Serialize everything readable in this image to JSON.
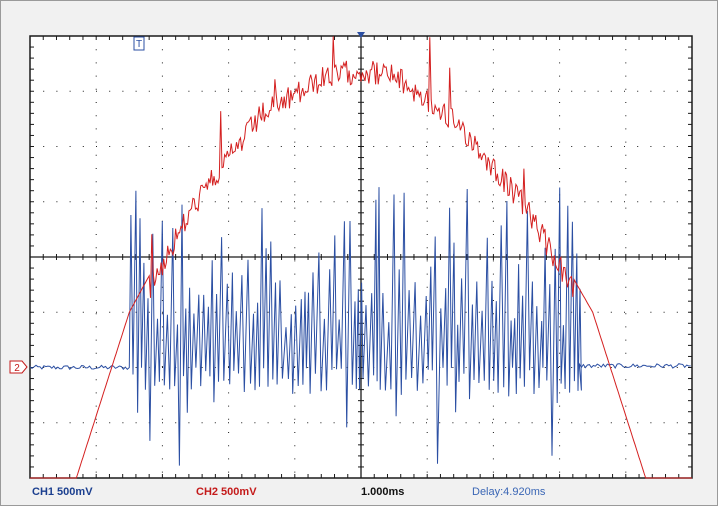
{
  "status_bar": {
    "ch1": "CH1 500mV",
    "ch2": "CH2 500mV",
    "timebase": "1.000ms",
    "delay": "Delay:4.920ms"
  },
  "markers": {
    "trigger": "T",
    "ch2_ground": "2"
  },
  "colors": {
    "ch1": "#2b4fa3",
    "ch2": "#d42020",
    "grid": "#1a1a1a",
    "background": "#ffffff",
    "ch1_label": "#1b3f8f",
    "ch2_label": "#c41a1a",
    "delay_label": "#3a66b5"
  },
  "chart_data": {
    "type": "line",
    "title": "",
    "xlabel": "",
    "ylabel": "",
    "grid": true,
    "divisions": {
      "x": 10,
      "y": 8
    },
    "xlim": [
      -5,
      5
    ],
    "ylim": [
      -4,
      4
    ],
    "series": [
      {
        "name": "CH1 500mV",
        "description_units": "divisions",
        "baseline": -2.0,
        "burst_start": -3.5,
        "burst_end": 3.3,
        "burst_peak_max": 1.3,
        "burst_trough_min": -3.9
      },
      {
        "name": "CH2 500mV",
        "description_units": "divisions",
        "x": [
          -5.0,
          -4.3,
          -3.5,
          -2.5,
          -1.5,
          -0.5,
          0.0,
          0.5,
          1.5,
          2.5,
          3.5,
          4.3,
          5.0
        ],
        "y": [
          -4.0,
          -4.0,
          -1.0,
          1.2,
          2.8,
          3.5,
          3.6,
          3.5,
          2.6,
          1.1,
          -1.0,
          -4.0,
          -4.0
        ]
      }
    ]
  }
}
